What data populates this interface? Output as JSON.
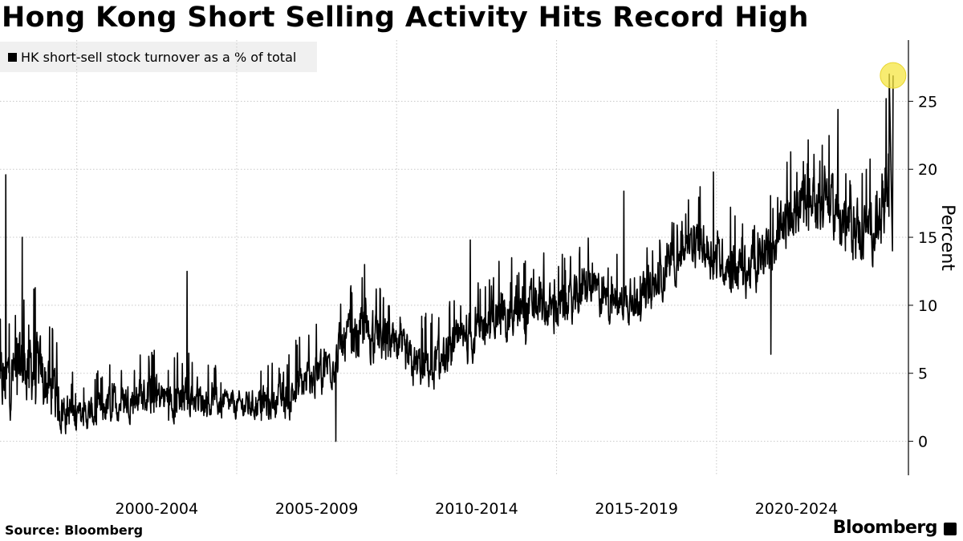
{
  "chart_data": {
    "type": "line",
    "title": "Hong Kong Short Selling Activity Hits Record High",
    "ylabel": "Percent",
    "ylim": [
      -2.5,
      29.5
    ],
    "yticks": [
      0,
      5,
      10,
      15,
      20,
      25
    ],
    "xlim": [
      1996.6,
      2025.0
    ],
    "x_period_ticks": [
      1999,
      2004,
      2009,
      2014,
      2019
    ],
    "x_period_labels": [
      {
        "label": "2000-2004",
        "center": 2001.5
      },
      {
        "label": "2005-2009",
        "center": 2006.5
      },
      {
        "label": "2010-2014",
        "center": 2011.5
      },
      {
        "label": "2015-2019",
        "center": 2016.5
      },
      {
        "label": "2020-2024",
        "center": 2021.5
      }
    ],
    "grid": true,
    "legend_position": "top-left",
    "series": [
      {
        "name": "HK short-sell stock turnover as a % of total",
        "color": "#000000",
        "trend": [
          [
            1996.6,
            4.0
          ],
          [
            1997.0,
            5.0
          ],
          [
            1997.5,
            5.5
          ],
          [
            1998.0,
            4.5
          ],
          [
            1998.5,
            2.5
          ],
          [
            1999.0,
            1.8
          ],
          [
            1999.5,
            2.0
          ],
          [
            2000.0,
            2.6
          ],
          [
            2000.5,
            3.0
          ],
          [
            2001.0,
            3.3
          ],
          [
            2001.5,
            3.3
          ],
          [
            2002.0,
            3.2
          ],
          [
            2002.5,
            3.3
          ],
          [
            2003.0,
            3.0
          ],
          [
            2003.5,
            2.8
          ],
          [
            2004.0,
            2.6
          ],
          [
            2004.5,
            2.7
          ],
          [
            2005.0,
            2.9
          ],
          [
            2005.5,
            3.1
          ],
          [
            2006.0,
            4.0
          ],
          [
            2006.5,
            4.8
          ],
          [
            2007.0,
            6.0
          ],
          [
            2007.5,
            7.5
          ],
          [
            2008.0,
            8.0
          ],
          [
            2008.5,
            7.5
          ],
          [
            2009.0,
            6.5
          ],
          [
            2009.5,
            5.5
          ],
          [
            2010.0,
            5.5
          ],
          [
            2010.5,
            6.0
          ],
          [
            2011.0,
            7.0
          ],
          [
            2011.5,
            8.0
          ],
          [
            2012.0,
            9.0
          ],
          [
            2012.5,
            9.5
          ],
          [
            2013.0,
            9.8
          ],
          [
            2013.5,
            10.0
          ],
          [
            2014.0,
            9.5
          ],
          [
            2014.5,
            10.0
          ],
          [
            2015.0,
            11.5
          ],
          [
            2015.5,
            10.5
          ],
          [
            2016.0,
            10.2
          ],
          [
            2016.5,
            10.5
          ],
          [
            2017.0,
            11.0
          ],
          [
            2017.5,
            13.0
          ],
          [
            2018.0,
            14.0
          ],
          [
            2018.5,
            14.5
          ],
          [
            2019.0,
            13.5
          ],
          [
            2019.5,
            13.0
          ],
          [
            2020.0,
            12.5
          ],
          [
            2020.5,
            13.5
          ],
          [
            2021.0,
            15.0
          ],
          [
            2021.5,
            17.0
          ],
          [
            2022.0,
            18.0
          ],
          [
            2022.5,
            17.5
          ],
          [
            2023.0,
            16.0
          ],
          [
            2023.5,
            15.5
          ],
          [
            2024.0,
            16.0
          ],
          [
            2024.4,
            17.0
          ]
        ],
        "amplitude": [
          [
            1996.6,
            3.5
          ],
          [
            1998.0,
            3.5
          ],
          [
            1999.0,
            1.5
          ],
          [
            2000.0,
            1.8
          ],
          [
            2002.0,
            2.0
          ],
          [
            2004.0,
            1.3
          ],
          [
            2006.0,
            2.2
          ],
          [
            2008.0,
            2.6
          ],
          [
            2010.0,
            2.2
          ],
          [
            2013.0,
            2.6
          ],
          [
            2016.0,
            2.0
          ],
          [
            2018.0,
            2.3
          ],
          [
            2020.0,
            2.6
          ],
          [
            2022.0,
            3.0
          ],
          [
            2024.4,
            3.2
          ]
        ],
        "spikes": [
          {
            "x": 1996.78,
            "y": 19.6
          },
          {
            "x": 1997.3,
            "y": 15.0
          },
          {
            "x": 2002.45,
            "y": 12.5
          },
          {
            "x": 2008.0,
            "y": 13.0
          },
          {
            "x": 2011.3,
            "y": 14.8
          },
          {
            "x": 2016.1,
            "y": 18.4
          },
          {
            "x": 2018.9,
            "y": 19.8
          },
          {
            "x": 2020.7,
            "y": 6.4
          },
          {
            "x": 2022.8,
            "y": 24.4
          },
          {
            "x": 2024.3,
            "y": 25.2
          },
          {
            "x": 2024.45,
            "y": 27.0
          },
          {
            "x": 2007.1,
            "y": 0.0
          }
        ],
        "last_value": {
          "x": 2024.5,
          "y": 26.9
        }
      }
    ]
  },
  "legend": {
    "items": [
      {
        "label": "HK short-sell stock turnover as a % of total",
        "color": "#000000"
      }
    ]
  },
  "footer": {
    "source": "Source: Bloomberg",
    "brand": "Bloomberg"
  },
  "highlight": {
    "color": "#f5e642"
  }
}
